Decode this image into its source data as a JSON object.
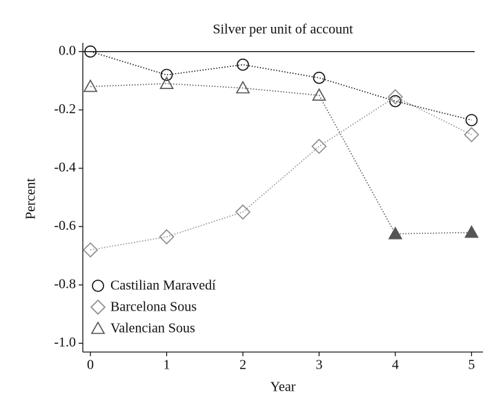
{
  "chart_data": {
    "type": "line",
    "title": "Silver per unit of account",
    "x_label": "Year",
    "y_label": "Percent",
    "x": [
      0,
      1,
      2,
      3,
      4,
      5
    ],
    "series": [
      {
        "name": "Castilian Maravedí",
        "color": "#111111",
        "marker": "circle",
        "values": [
          0,
          -0.08,
          -0.045,
          -0.09,
          -0.17,
          -0.235
        ],
        "filled": [
          false,
          false,
          false,
          false,
          false,
          false
        ]
      },
      {
        "name": "Barcelona Sous",
        "color": "#8c8c8c",
        "marker": "diamond",
        "values": [
          -0.68,
          -0.635,
          -0.55,
          -0.325,
          -0.155,
          -0.285
        ],
        "filled": [
          false,
          false,
          false,
          false,
          false,
          false
        ]
      },
      {
        "name": "Valencian Sous",
        "color": "#555555",
        "marker": "triangle",
        "values": [
          -0.12,
          -0.11,
          -0.125,
          -0.15,
          -0.625,
          -0.62
        ],
        "filled": [
          false,
          false,
          false,
          false,
          true,
          true
        ]
      }
    ],
    "reference_line": 0,
    "xlim": [
      -0.1,
      5.15
    ],
    "ylim": [
      -1.03,
      0.03
    ],
    "xticks": [
      0,
      1,
      2,
      3,
      4,
      5
    ],
    "yticks": [
      {
        "value": 0,
        "label": "0.0"
      },
      {
        "value": -0.2,
        "label": "-0.2"
      },
      {
        "value": -0.4,
        "label": "-0.4"
      },
      {
        "value": -0.6,
        "label": "-0.6"
      },
      {
        "value": -0.8,
        "label": "-0.8"
      },
      {
        "value": -1,
        "label": "-1.0"
      }
    ],
    "legend": "lower left"
  }
}
